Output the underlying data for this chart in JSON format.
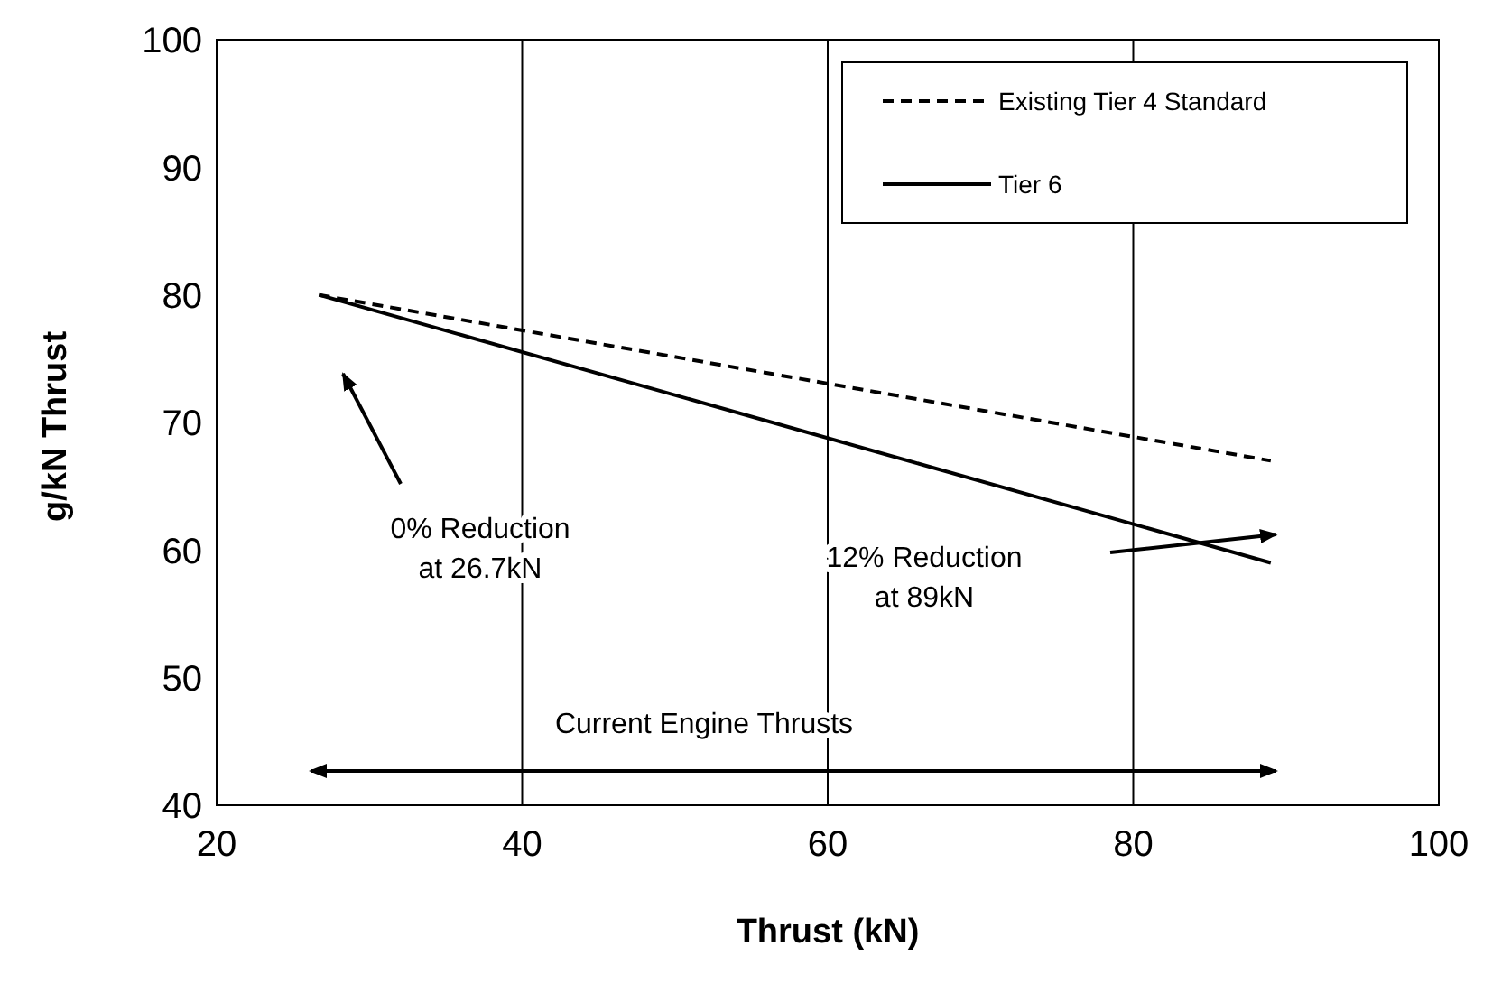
{
  "chart_data": {
    "type": "line",
    "xlabel": "Thrust (kN)",
    "ylabel": "g/kN Thrust",
    "x": [
      26.7,
      89
    ],
    "series": [
      {
        "name": "Existing Tier 4 Standard",
        "color": "#000000",
        "values": [
          80,
          67
        ],
        "line_style": "dashed"
      },
      {
        "name": "Tier 6",
        "color": "#000000",
        "values": [
          80,
          59
        ],
        "line_style": "solid"
      }
    ],
    "xlim": [
      20,
      100
    ],
    "xticks": [
      20,
      40,
      60,
      80,
      100
    ],
    "ylim": [
      40,
      100
    ],
    "yticks": [
      40,
      50,
      60,
      70,
      80,
      90,
      100
    ],
    "grid": "x",
    "legend": "top right",
    "annotations": [
      "0% Reduction\nat 26.7kN",
      "12% Reduction\nat 89kN",
      "Current Engine Thrusts"
    ]
  }
}
